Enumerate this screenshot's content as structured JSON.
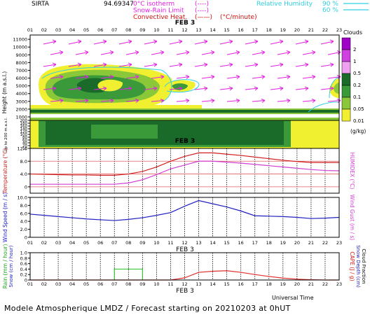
{
  "header": {
    "station": "SIRTA",
    "coords": "94.69347",
    "legend": [
      {
        "label": "0°C isotherm",
        "sample": "(----)",
        "color": "#e020e0"
      },
      {
        "label": "Snow-Rain Limit",
        "sample": "(----)",
        "color": "#e020e0"
      },
      {
        "label": "Convective Heat.",
        "sample": "(——)",
        "color": "#d01010",
        "unit": "(°C/minute)"
      }
    ],
    "rh_label": "Relative Humidity",
    "rh_levels": [
      "90 %",
      "60 %"
    ],
    "rh_color": "#30d0e0"
  },
  "time_axis": {
    "hours": [
      "01",
      "02",
      "03",
      "04",
      "05",
      "06",
      "07",
      "08",
      "09",
      "10",
      "11",
      "12",
      "13",
      "14",
      "15",
      "16",
      "17",
      "18",
      "19",
      "20",
      "21",
      "22",
      "23"
    ],
    "date_label": "FEB 3",
    "footer_label": "Universal Time"
  },
  "clouds_panel": {
    "ylabel": "Height (m a.s.l.)",
    "ylabel_low": "Up to 200 m a.s.l.",
    "upper_ticks": [
      "1000",
      "2000",
      "3000",
      "4000",
      "5000",
      "6000",
      "7000",
      "8000",
      "9000",
      "10000",
      "11000"
    ],
    "lower_ticks": [
      "10",
      "20",
      "40",
      "60",
      "80",
      "100",
      "120",
      "140",
      "160",
      "180",
      "200"
    ],
    "legend_title": "Clouds",
    "legend_unit": "(g/kg)",
    "legend_levels": [
      {
        "label": "2",
        "color": "#a000c8"
      },
      {
        "label": "1",
        "color": "#d040e0"
      },
      {
        "label": "0.5",
        "color": "#f0a0f0"
      },
      {
        "label": "0.2",
        "color": "#1a6a2a"
      },
      {
        "label": "0.1",
        "color": "#3a9a3a"
      },
      {
        "label": "0.05",
        "color": "#8ac83a"
      },
      {
        "label": "0.01",
        "color": "#f0f030"
      }
    ]
  },
  "chart_data": [
    {
      "type": "line",
      "name": "temperature",
      "x": [
        "01",
        "02",
        "03",
        "04",
        "05",
        "06",
        "07",
        "08",
        "09",
        "10",
        "11",
        "12",
        "13",
        "14",
        "15",
        "16",
        "17",
        "18",
        "19",
        "20",
        "21",
        "22",
        "23"
      ],
      "ylabel": "Temperature (°C)",
      "ylabel_right": "HUMIDEX (°C)",
      "yticks": [
        "0",
        "4.0",
        "8.0",
        "12.0"
      ],
      "ylim": [
        -2,
        12
      ],
      "series": [
        {
          "name": "Temperature",
          "color": "#d02020",
          "values": [
            4.0,
            3.9,
            3.8,
            3.7,
            3.7,
            3.6,
            3.6,
            4.0,
            4.8,
            6.2,
            8.0,
            9.5,
            10.6,
            10.6,
            10.2,
            9.8,
            9.3,
            8.8,
            8.3,
            7.9,
            7.6,
            7.6,
            7.6
          ]
        },
        {
          "name": "HUMIDEX",
          "color": "#d040d0",
          "values": [
            0.8,
            0.8,
            0.8,
            0.8,
            0.8,
            0.8,
            0.8,
            1.2,
            2.2,
            3.8,
            5.6,
            6.8,
            8.0,
            8.0,
            7.7,
            7.4,
            7.0,
            6.6,
            6.2,
            5.8,
            5.4,
            5.1,
            5.0
          ]
        }
      ]
    },
    {
      "type": "line",
      "name": "wind",
      "x": [
        "01",
        "02",
        "03",
        "04",
        "05",
        "06",
        "07",
        "08",
        "09",
        "10",
        "11",
        "12",
        "13",
        "14",
        "15",
        "16",
        "17",
        "18",
        "19",
        "20",
        "21",
        "22",
        "23"
      ],
      "ylabel": "Wind Speed (m / s)",
      "ylabel_right": "Wind Gust (m / s)",
      "yticks": [
        "0",
        "2.0",
        "4.0",
        "6.0",
        "8.0",
        "10.0"
      ],
      "ylim": [
        0,
        10
      ],
      "series": [
        {
          "name": "Wind Speed",
          "color": "#2020c0",
          "values": [
            5.8,
            5.5,
            5.2,
            4.9,
            4.6,
            4.4,
            4.2,
            4.5,
            4.9,
            5.5,
            6.2,
            7.8,
            9.2,
            8.4,
            7.6,
            6.6,
            5.4,
            5.3,
            5.2,
            5.0,
            4.7,
            4.8,
            5.0
          ]
        }
      ]
    },
    {
      "type": "line",
      "name": "precip",
      "x": [
        "01",
        "02",
        "03",
        "04",
        "05",
        "06",
        "07",
        "08",
        "09",
        "10",
        "11",
        "12",
        "13",
        "14",
        "15",
        "16",
        "17",
        "18",
        "19",
        "20",
        "21",
        "22",
        "23"
      ],
      "ylabel": "Rain (mm / hour)",
      "ylabel2": "Snow (cm / hour)",
      "ylabel_right": "CAPE (J / g)",
      "ylabel_right2": "Snow Depth (cm)",
      "ylabel_right3": "Cloud Fraction",
      "yticks": [
        "0",
        "0.2",
        "0.4",
        "0.6",
        "0.8",
        "1.0"
      ],
      "ylim": [
        0,
        1.0
      ],
      "series": [
        {
          "name": "Rain",
          "color": "#20c020",
          "values": [
            0,
            0,
            0,
            0,
            0,
            0,
            0.4,
            0.4,
            0,
            0,
            0,
            0,
            0,
            0,
            0,
            0,
            0,
            0,
            0,
            0,
            0,
            0,
            0
          ]
        },
        {
          "name": "CAPE",
          "color": "#e03030",
          "values": [
            0,
            0,
            0,
            0,
            0,
            0,
            0,
            0,
            0,
            0,
            0,
            0.08,
            0.28,
            0.32,
            0.34,
            0.28,
            0.2,
            0.13,
            0.07,
            0.03,
            0.01,
            0,
            0
          ]
        }
      ]
    }
  ],
  "footer": {
    "caption": "Modele Atmospherique LMDZ / Forecast starting on 20210203 at 0hUT"
  }
}
